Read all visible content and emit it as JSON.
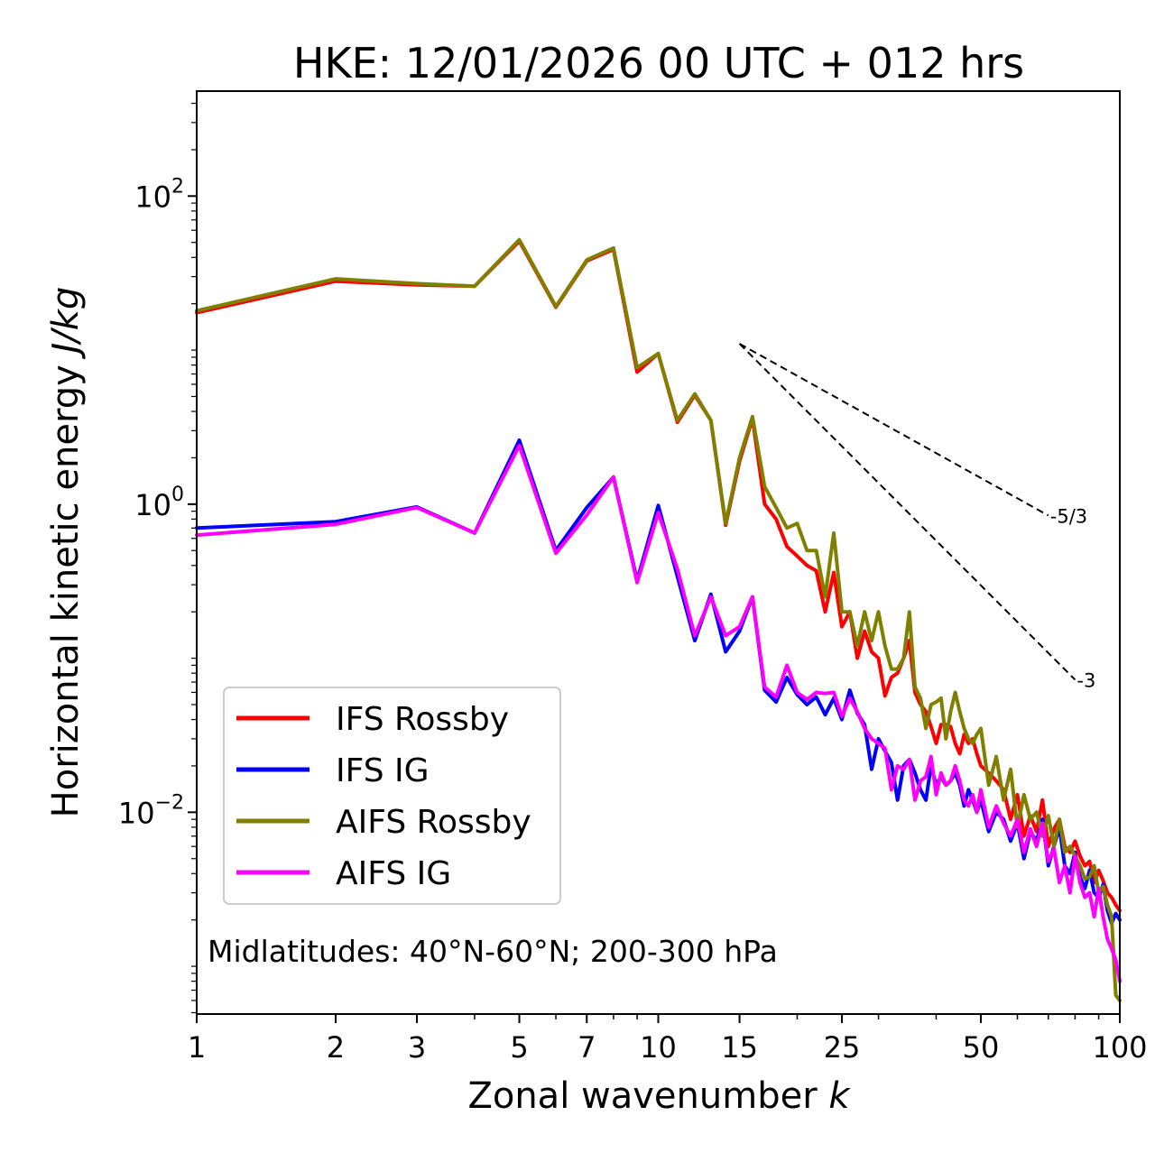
{
  "chart_data": {
    "type": "line",
    "title": "HKE: 12/01/2026 00 UTC + 012 hrs",
    "xlabel_prefix": "Zonal wavenumber ",
    "xlabel_var": "k",
    "ylabel_prefix": "Horizontal kinetic energy ",
    "ylabel_units": "J/kg",
    "xscale": "log",
    "yscale": "log",
    "xlim": [
      1,
      100
    ],
    "ylim": [
      0.00049,
      480
    ],
    "x_ticks": [
      {
        "value": 1,
        "label": "1"
      },
      {
        "value": 2,
        "label": "2"
      },
      {
        "value": 3,
        "label": "3"
      },
      {
        "value": 5,
        "label": "5"
      },
      {
        "value": 7,
        "label": "7"
      },
      {
        "value": 10,
        "label": "10"
      },
      {
        "value": 15,
        "label": "15"
      },
      {
        "value": 25,
        "label": "25"
      },
      {
        "value": 50,
        "label": "50"
      },
      {
        "value": 100,
        "label": "100"
      }
    ],
    "y_ticks": [
      {
        "value": 0.01,
        "base": "10",
        "exp": "−2"
      },
      {
        "value": 1,
        "base": "10",
        "exp": "0"
      },
      {
        "value": 100,
        "base": "10",
        "exp": "2"
      }
    ],
    "annotation": "Midlatitudes: 40°N-60°N; 200-300 hPa",
    "reference_slopes": [
      {
        "label": "-5/3",
        "slope": -1.6667,
        "x_start": 15,
        "y_start": 11,
        "x_end": 70
      },
      {
        "label": "-3",
        "slope": -3,
        "x_start": 15,
        "y_start": 11,
        "x_end": 80
      }
    ],
    "legend": {
      "location": "lower-left"
    },
    "series": [
      {
        "name": "IFS Rossby",
        "color": "#ff0000",
        "points": [
          [
            1,
            17.5
          ],
          [
            2,
            28
          ],
          [
            3,
            26.5
          ],
          [
            4,
            26
          ],
          [
            5,
            51
          ],
          [
            6,
            19
          ],
          [
            7,
            38
          ],
          [
            8,
            45
          ],
          [
            9,
            7.2
          ],
          [
            10,
            9.5
          ],
          [
            11,
            3.4
          ],
          [
            12,
            5.1
          ],
          [
            13,
            3.5
          ],
          [
            14,
            0.73
          ],
          [
            15,
            1.9
          ],
          [
            16,
            3.6
          ],
          [
            17,
            1.0
          ],
          [
            18,
            0.8
          ],
          [
            19,
            0.53
          ],
          [
            20,
            0.46
          ],
          [
            21,
            0.4
          ],
          [
            22,
            0.37
          ],
          [
            23,
            0.2
          ],
          [
            24,
            0.36
          ],
          [
            25,
            0.16
          ],
          [
            26,
            0.2
          ],
          [
            27,
            0.1
          ],
          [
            28,
            0.15
          ],
          [
            29,
            0.11
          ],
          [
            30,
            0.1
          ],
          [
            31,
            0.057
          ],
          [
            32,
            0.075
          ],
          [
            33,
            0.08
          ],
          [
            34,
            0.1
          ],
          [
            35,
            0.13
          ],
          [
            36,
            0.06
          ],
          [
            37,
            0.05
          ],
          [
            38,
            0.045
          ],
          [
            39,
            0.036
          ],
          [
            40,
            0.028
          ],
          [
            41,
            0.037
          ],
          [
            42,
            0.037
          ],
          [
            43,
            0.036
          ],
          [
            44,
            0.028
          ],
          [
            45,
            0.024
          ],
          [
            46,
            0.032
          ],
          [
            47,
            0.028
          ],
          [
            48,
            0.03
          ],
          [
            49,
            0.024
          ],
          [
            50,
            0.02
          ],
          [
            52,
            0.018
          ],
          [
            54,
            0.016
          ],
          [
            56,
            0.014
          ],
          [
            58,
            0.009
          ],
          [
            60,
            0.013
          ],
          [
            62,
            0.007
          ],
          [
            64,
            0.0095
          ],
          [
            66,
            0.0075
          ],
          [
            68,
            0.012
          ],
          [
            70,
            0.006
          ],
          [
            72,
            0.0078
          ],
          [
            74,
            0.009
          ],
          [
            76,
            0.006
          ],
          [
            78,
            0.0055
          ],
          [
            80,
            0.0065
          ],
          [
            82,
            0.0052
          ],
          [
            84,
            0.0045
          ],
          [
            86,
            0.0048
          ],
          [
            88,
            0.0035
          ],
          [
            90,
            0.0042
          ],
          [
            92,
            0.0036
          ],
          [
            94,
            0.003
          ],
          [
            96,
            0.0028
          ],
          [
            98,
            0.0025
          ],
          [
            100,
            0.0023
          ]
        ]
      },
      {
        "name": "IFS IG",
        "color": "#0000ff",
        "points": [
          [
            1,
            0.7
          ],
          [
            2,
            0.77
          ],
          [
            3,
            0.96
          ],
          [
            4,
            0.65
          ],
          [
            5,
            2.6
          ],
          [
            6,
            0.5
          ],
          [
            7,
            0.95
          ],
          [
            8,
            1.5
          ],
          [
            9,
            0.32
          ],
          [
            10,
            0.98
          ],
          [
            11,
            0.34
          ],
          [
            12,
            0.13
          ],
          [
            13,
            0.26
          ],
          [
            14,
            0.11
          ],
          [
            15,
            0.15
          ],
          [
            16,
            0.25
          ],
          [
            17,
            0.062
          ],
          [
            18,
            0.052
          ],
          [
            19,
            0.075
          ],
          [
            20,
            0.058
          ],
          [
            21,
            0.05
          ],
          [
            22,
            0.056
          ],
          [
            23,
            0.043
          ],
          [
            24,
            0.055
          ],
          [
            25,
            0.04
          ],
          [
            26,
            0.062
          ],
          [
            27,
            0.044
          ],
          [
            28,
            0.037
          ],
          [
            29,
            0.019
          ],
          [
            30,
            0.03
          ],
          [
            31,
            0.025
          ],
          [
            32,
            0.021
          ],
          [
            33,
            0.012
          ],
          [
            34,
            0.02
          ],
          [
            35,
            0.022
          ],
          [
            36,
            0.018
          ],
          [
            37,
            0.014
          ],
          [
            38,
            0.012
          ],
          [
            39,
            0.02
          ],
          [
            40,
            0.015
          ],
          [
            41,
            0.017
          ],
          [
            42,
            0.015
          ],
          [
            43,
            0.016
          ],
          [
            44,
            0.018
          ],
          [
            45,
            0.015
          ],
          [
            46,
            0.011
          ],
          [
            47,
            0.014
          ],
          [
            48,
            0.012
          ],
          [
            49,
            0.01
          ],
          [
            50,
            0.012
          ],
          [
            52,
            0.0075
          ],
          [
            54,
            0.01
          ],
          [
            56,
            0.009
          ],
          [
            58,
            0.0065
          ],
          [
            60,
            0.0085
          ],
          [
            62,
            0.005
          ],
          [
            64,
            0.0075
          ],
          [
            66,
            0.0065
          ],
          [
            68,
            0.009
          ],
          [
            70,
            0.0045
          ],
          [
            72,
            0.006
          ],
          [
            74,
            0.008
          ],
          [
            76,
            0.0045
          ],
          [
            78,
            0.004
          ],
          [
            80,
            0.0055
          ],
          [
            82,
            0.0038
          ],
          [
            84,
            0.0032
          ],
          [
            86,
            0.0042
          ],
          [
            88,
            0.003
          ],
          [
            90,
            0.0028
          ],
          [
            92,
            0.0034
          ],
          [
            94,
            0.0023
          ],
          [
            96,
            0.0019
          ],
          [
            98,
            0.0022
          ],
          [
            100,
            0.002
          ]
        ]
      },
      {
        "name": "AIFS Rossby",
        "color": "#808000",
        "points": [
          [
            1,
            18
          ],
          [
            2,
            29
          ],
          [
            3,
            27
          ],
          [
            4,
            26
          ],
          [
            5,
            52
          ],
          [
            6,
            19.2
          ],
          [
            7,
            38.5
          ],
          [
            8,
            46
          ],
          [
            9,
            7.7
          ],
          [
            10,
            9.5
          ],
          [
            11,
            3.5
          ],
          [
            12,
            5.2
          ],
          [
            13,
            3.5
          ],
          [
            14,
            0.75
          ],
          [
            15,
            2.0
          ],
          [
            16,
            3.7
          ],
          [
            17,
            1.3
          ],
          [
            18,
            0.95
          ],
          [
            19,
            0.7
          ],
          [
            20,
            0.75
          ],
          [
            21,
            0.5
          ],
          [
            22,
            0.5
          ],
          [
            23,
            0.25
          ],
          [
            24,
            0.65
          ],
          [
            25,
            0.2
          ],
          [
            26,
            0.2
          ],
          [
            27,
            0.12
          ],
          [
            28,
            0.2
          ],
          [
            29,
            0.13
          ],
          [
            30,
            0.2
          ],
          [
            31,
            0.12
          ],
          [
            32,
            0.085
          ],
          [
            33,
            0.085
          ],
          [
            34,
            0.1
          ],
          [
            35,
            0.2
          ],
          [
            36,
            0.065
          ],
          [
            37,
            0.055
          ],
          [
            38,
            0.035
          ],
          [
            39,
            0.05
          ],
          [
            40,
            0.052
          ],
          [
            41,
            0.055
          ],
          [
            42,
            0.03
          ],
          [
            43,
            0.045
          ],
          [
            44,
            0.06
          ],
          [
            45,
            0.045
          ],
          [
            46,
            0.035
          ],
          [
            47,
            0.03
          ],
          [
            48,
            0.028
          ],
          [
            49,
            0.032
          ],
          [
            50,
            0.035
          ],
          [
            52,
            0.015
          ],
          [
            54,
            0.023
          ],
          [
            56,
            0.012
          ],
          [
            58,
            0.019
          ],
          [
            60,
            0.008
          ],
          [
            62,
            0.013
          ],
          [
            64,
            0.009
          ],
          [
            66,
            0.01
          ],
          [
            68,
            0.007
          ],
          [
            70,
            0.0095
          ],
          [
            72,
            0.006
          ],
          [
            74,
            0.009
          ],
          [
            76,
            0.0055
          ],
          [
            78,
            0.006
          ],
          [
            80,
            0.0052
          ],
          [
            82,
            0.0045
          ],
          [
            84,
            0.0037
          ],
          [
            86,
            0.0038
          ],
          [
            88,
            0.0045
          ],
          [
            90,
            0.003
          ],
          [
            92,
            0.0033
          ],
          [
            94,
            0.0025
          ],
          [
            96,
            0.0021
          ],
          [
            98,
            0.00065
          ],
          [
            100,
            0.0006
          ]
        ]
      },
      {
        "name": "AIFS IG",
        "color": "#ff00ff",
        "points": [
          [
            1,
            0.63
          ],
          [
            2,
            0.74
          ],
          [
            3,
            0.95
          ],
          [
            4,
            0.65
          ],
          [
            5,
            2.4
          ],
          [
            6,
            0.48
          ],
          [
            7,
            0.85
          ],
          [
            8,
            1.5
          ],
          [
            9,
            0.31
          ],
          [
            10,
            0.88
          ],
          [
            11,
            0.38
          ],
          [
            12,
            0.14
          ],
          [
            13,
            0.25
          ],
          [
            14,
            0.14
          ],
          [
            15,
            0.16
          ],
          [
            16,
            0.25
          ],
          [
            17,
            0.065
          ],
          [
            18,
            0.056
          ],
          [
            19,
            0.09
          ],
          [
            20,
            0.06
          ],
          [
            21,
            0.054
          ],
          [
            22,
            0.06
          ],
          [
            23,
            0.059
          ],
          [
            24,
            0.06
          ],
          [
            25,
            0.042
          ],
          [
            26,
            0.055
          ],
          [
            27,
            0.045
          ],
          [
            28,
            0.035
          ],
          [
            29,
            0.03
          ],
          [
            30,
            0.028
          ],
          [
            31,
            0.026
          ],
          [
            32,
            0.014
          ],
          [
            33,
            0.02
          ],
          [
            34,
            0.019
          ],
          [
            35,
            0.022
          ],
          [
            36,
            0.012
          ],
          [
            37,
            0.016
          ],
          [
            38,
            0.017
          ],
          [
            39,
            0.023
          ],
          [
            40,
            0.013
          ],
          [
            41,
            0.018
          ],
          [
            42,
            0.015
          ],
          [
            43,
            0.016
          ],
          [
            44,
            0.02
          ],
          [
            45,
            0.016
          ],
          [
            46,
            0.012
          ],
          [
            47,
            0.011
          ],
          [
            48,
            0.013
          ],
          [
            49,
            0.01
          ],
          [
            50,
            0.014
          ],
          [
            52,
            0.008
          ],
          [
            54,
            0.011
          ],
          [
            56,
            0.0085
          ],
          [
            58,
            0.007
          ],
          [
            60,
            0.009
          ],
          [
            62,
            0.0055
          ],
          [
            64,
            0.0078
          ],
          [
            66,
            0.006
          ],
          [
            68,
            0.0085
          ],
          [
            70,
            0.0048
          ],
          [
            72,
            0.0058
          ],
          [
            74,
            0.0035
          ],
          [
            76,
            0.0045
          ],
          [
            78,
            0.003
          ],
          [
            80,
            0.0052
          ],
          [
            82,
            0.0035
          ],
          [
            84,
            0.0028
          ],
          [
            86,
            0.003
          ],
          [
            88,
            0.0021
          ],
          [
            90,
            0.0032
          ],
          [
            92,
            0.0021
          ],
          [
            94,
            0.0015
          ],
          [
            96,
            0.0013
          ],
          [
            98,
            0.0011
          ],
          [
            100,
            0.0008
          ]
        ]
      }
    ]
  }
}
